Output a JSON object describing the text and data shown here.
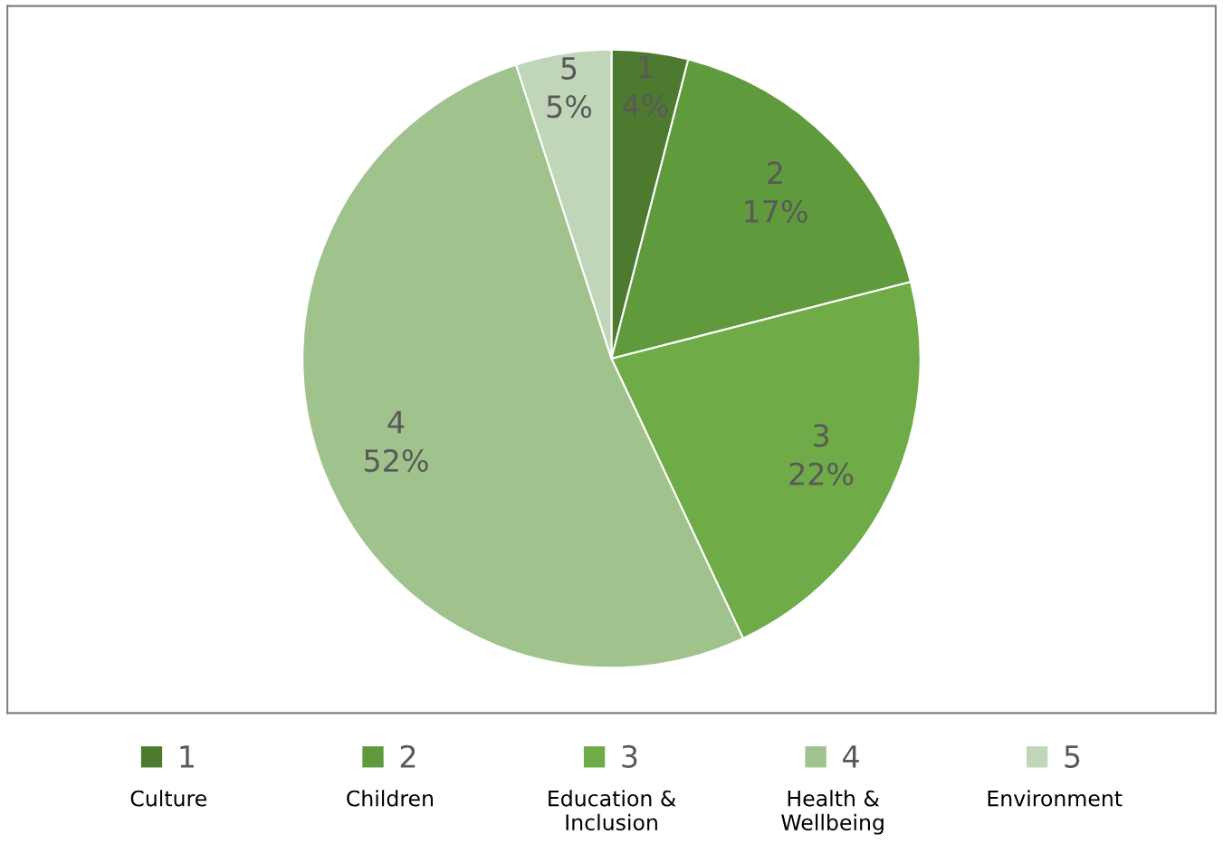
{
  "chart_data": {
    "type": "pie",
    "categories": [
      "1",
      "2",
      "3",
      "4",
      "5"
    ],
    "values": [
      4,
      17,
      22,
      52,
      5
    ],
    "value_labels": [
      "4%",
      "17%",
      "22%",
      "52%",
      "5%"
    ],
    "colors": [
      "#4e7a30",
      "#5f9a3c",
      "#6fab47",
      "#a0c28d",
      "#c1d6b8"
    ],
    "legend": "bottom",
    "annotations": [
      "Culture",
      "Children",
      "Education &\nInclusion",
      "Health &\nWellbeing",
      "Environment"
    ]
  }
}
